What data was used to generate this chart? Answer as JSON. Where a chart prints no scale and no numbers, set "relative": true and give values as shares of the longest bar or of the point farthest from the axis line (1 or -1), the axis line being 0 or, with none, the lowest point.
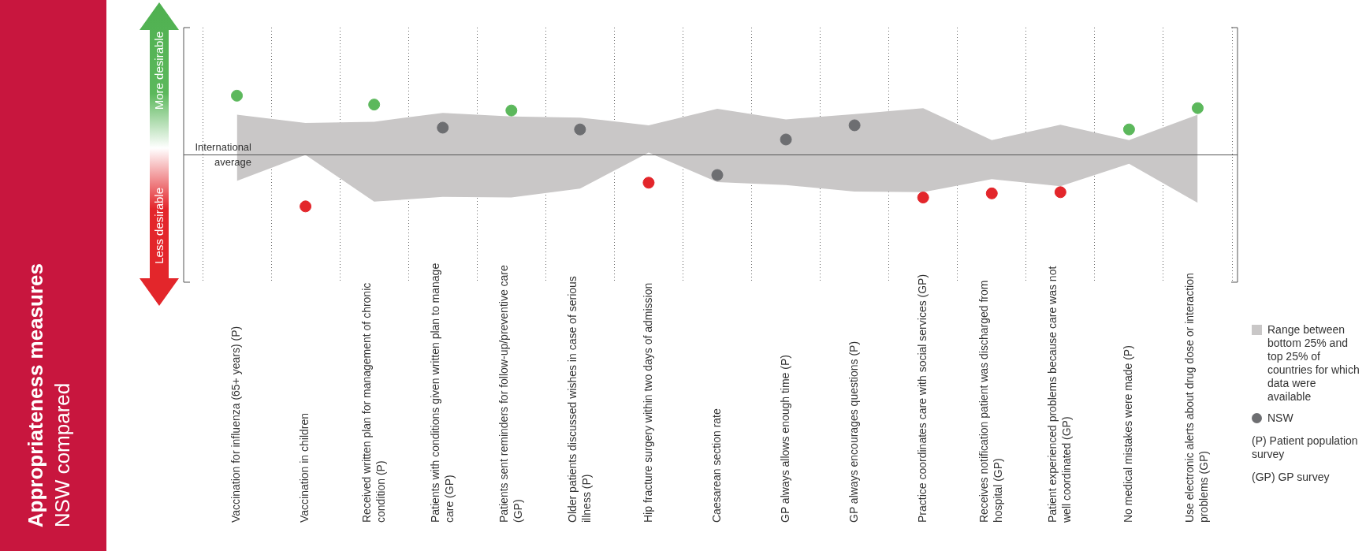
{
  "chart_data": {
    "type": "scatter",
    "title": "Appropriateness measures",
    "subtitle": "NSW compared",
    "categories": [
      "Vaccination for influenza (65+ years) (P)",
      "Vaccination in children",
      "Received written plan for management of chronic condition (P)",
      "Patients with conditions given written plan to manage care (GP)",
      "Patients sent reminders for follow-up/preventive care (GP)",
      "Older patients discussed wishes in case of serious illness (P)",
      "Hip fracture surgery within two days of admission",
      "Caesarean section rate",
      "GP always allows enough time (P)",
      "GP always encourages questions (P)",
      "Practice coordinates care with social services (GP)",
      "Receives notification patient was discharged from hospital (GP)",
      "Patient experienced problems because care was not well coordinated (GP)",
      "No medical mistakes were made (P)",
      "Use electronic alerts about drug dose or interaction problems (GP)"
    ],
    "series": [
      {
        "name": "Range between bottom 25% and top 25% of countries for which data were available",
        "type": "area",
        "color": "#c9c7c7",
        "values": [
          null,
          null,
          null,
          null,
          null,
          null,
          null,
          null,
          null,
          null,
          null,
          null,
          null,
          null,
          null
        ],
        "lower": [
          -0.44,
          0,
          -0.79,
          -0.71,
          -0.72,
          -0.57,
          0.04,
          -0.46,
          -0.51,
          -0.62,
          -0.63,
          -0.41,
          -0.53,
          -0.15,
          -0.81
        ],
        "upper": [
          0.68,
          0.54,
          0.56,
          0.71,
          0.65,
          0.63,
          0.5,
          0.78,
          0.6,
          0.69,
          0.79,
          0.25,
          0.51,
          0.25,
          0.68
        ]
      },
      {
        "name": "NSW",
        "color": "#6d6e71",
        "colors": [
          "#5cb85c",
          "#e3262b",
          "#5cb85c",
          "#6d6e71",
          "#5cb85c",
          "#6d6e71",
          "#e3262b",
          "#6d6e71",
          "#6d6e71",
          "#6d6e71",
          "#e3262b",
          "#e3262b",
          "#e3262b",
          "#5cb85c",
          "#5cb85c"
        ],
        "values": [
          1,
          -0.87,
          0.85,
          0.46,
          0.75,
          0.43,
          -0.47,
          -0.34,
          0.26,
          0.5,
          -0.72,
          -0.65,
          -0.63,
          0.43,
          0.79
        ]
      }
    ],
    "relative": true,
    "ref_lines": [
      {
        "axis": "y",
        "value": 0,
        "label": "International average",
        "color": "#555555"
      }
    ],
    "annotations": [
      "More desirable",
      "Less desirable",
      "(P) Patient population survey",
      "(GP) GP survey"
    ],
    "legend": "right",
    "grid": "x",
    "marker": "circle"
  }
}
